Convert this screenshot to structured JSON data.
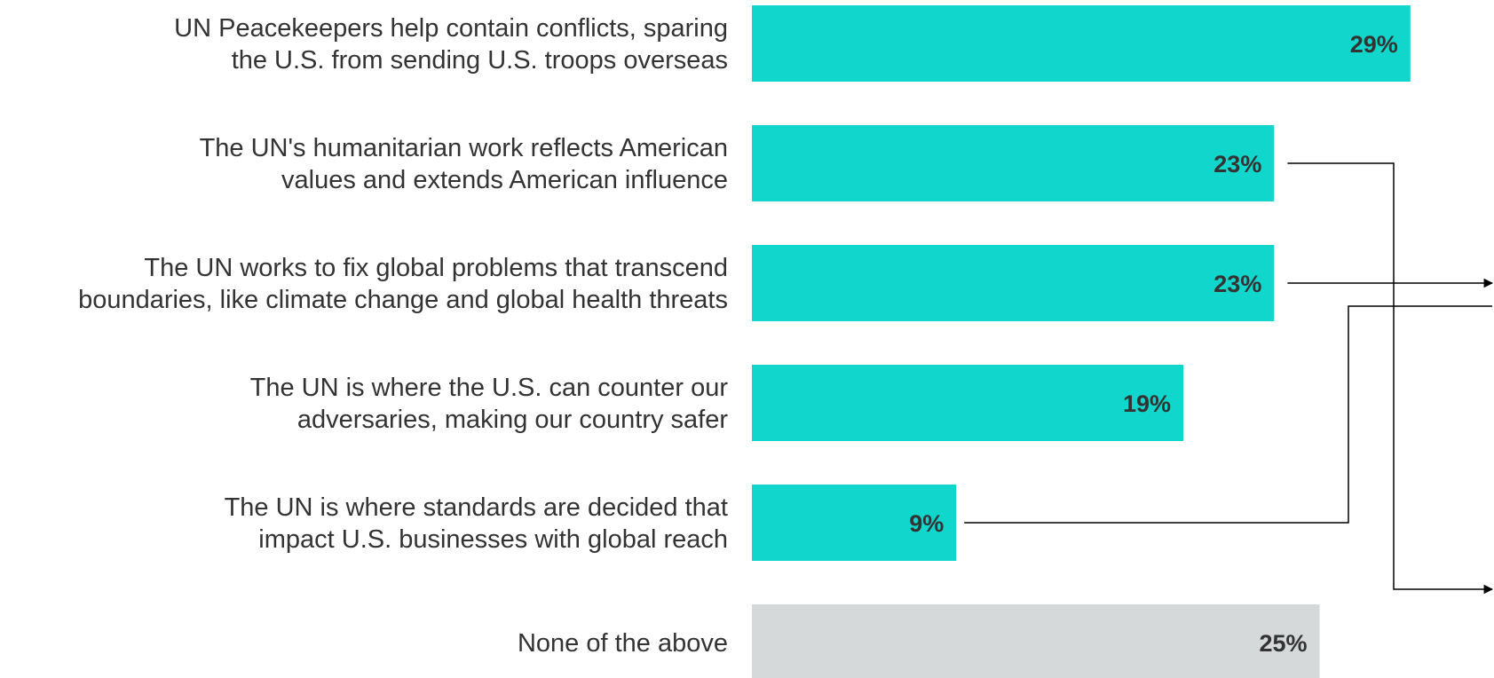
{
  "chart_data": {
    "type": "bar",
    "orientation": "horizontal",
    "categories": [
      [
        "UN Peacekeepers help contain conflicts, sparing",
        "the U.S. from sending U.S. troops overseas"
      ],
      [
        "The UN's humanitarian work reflects American",
        "values and extends American influence"
      ],
      [
        "The UN works to fix global problems that transcend",
        "boundaries, like climate change and global health threats"
      ],
      [
        "The UN is where the U.S. can counter our",
        "adversaries, making our country safer"
      ],
      [
        "The UN is where standards are decided that",
        "impact U.S. businesses with global reach"
      ],
      [
        "None of the above"
      ]
    ],
    "values": [
      29,
      23,
      23,
      19,
      9,
      25
    ],
    "value_labels": [
      "29%",
      "23%",
      "23%",
      "19%",
      "9%",
      "25%"
    ],
    "colors": [
      "#11d6cc",
      "#11d6cc",
      "#11d6cc",
      "#11d6cc",
      "#11d6cc",
      "#d5d9d9"
    ],
    "title": "",
    "xlabel": "",
    "ylabel": "",
    "grid": false,
    "legend": "none",
    "connectors": [
      {
        "from": 1,
        "style": "down-then-right",
        "arrow": true
      },
      {
        "from": 2,
        "style": "straight-right",
        "arrow": true
      },
      {
        "from": 4,
        "style": "up-then-right",
        "arrow": false
      }
    ]
  }
}
